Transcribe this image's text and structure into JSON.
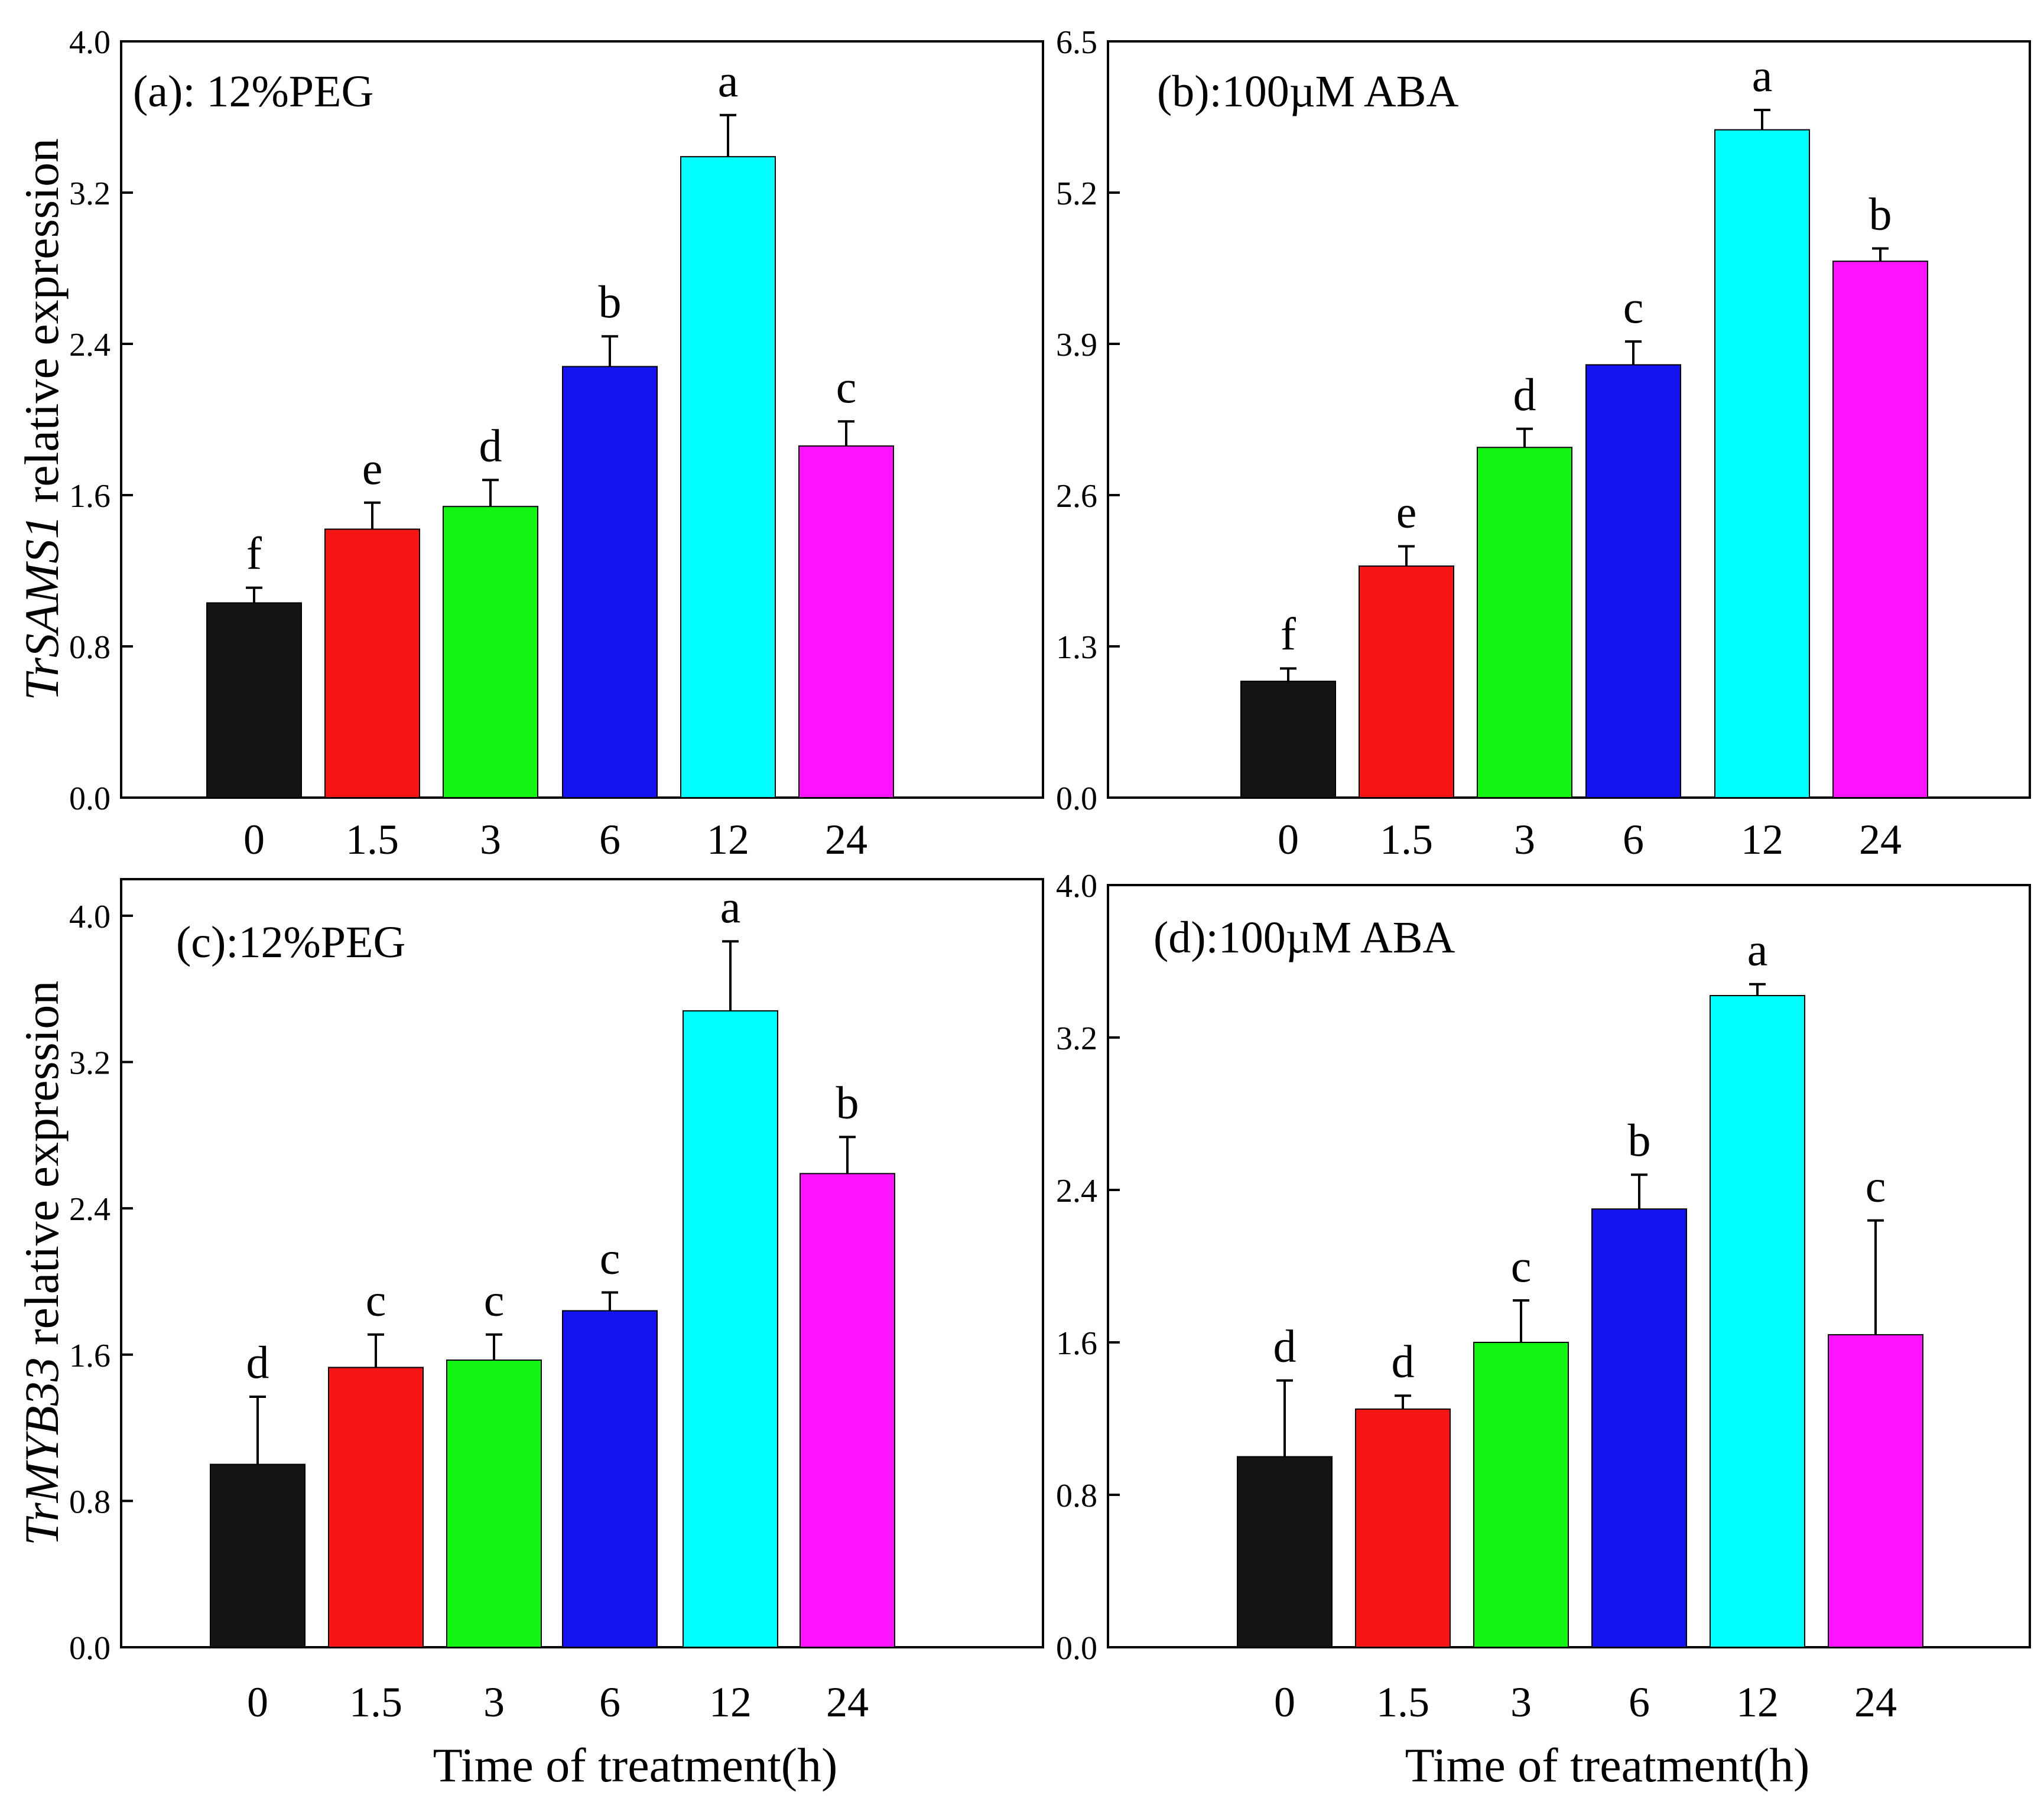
{
  "figure": {
    "xlabel": "Time of treatment(h)",
    "ylabel_top": {
      "gene": "TrSAMS1",
      "suffix": " relative expression"
    },
    "ylabel_bottom": {
      "gene": "TrMYB33",
      "suffix": " relative expression"
    },
    "bar_colors": [
      "#141414",
      "#f71414",
      "#14f514",
      "#1414f0",
      "#00ffff",
      "#ff14ff"
    ]
  },
  "chart_data": [
    {
      "type": "bar",
      "id": "a",
      "title": "(a): 12%PEG",
      "categories": [
        "0",
        "1.5",
        "3",
        "6",
        "12",
        "24"
      ],
      "values": [
        1.03,
        1.42,
        1.54,
        2.28,
        3.39,
        1.86
      ],
      "errors": [
        0.08,
        0.14,
        0.14,
        0.16,
        0.22,
        0.13
      ],
      "letters": [
        "f",
        "e",
        "d",
        "b",
        "a",
        "c"
      ],
      "ylim": [
        0,
        4.0
      ],
      "yticks": [
        "0.0",
        "0.8",
        "1.6",
        "2.4",
        "3.2",
        "4.0"
      ]
    },
    {
      "type": "bar",
      "id": "b",
      "title": "(b):100µM ABA",
      "categories": [
        "0",
        "1.5",
        "3",
        "6",
        "12",
        "24"
      ],
      "values": [
        1.0,
        1.99,
        3.01,
        3.72,
        5.74,
        4.61
      ],
      "errors": [
        0.11,
        0.17,
        0.16,
        0.2,
        0.17,
        0.11
      ],
      "letters": [
        "f",
        "e",
        "d",
        "c",
        "a",
        "b"
      ],
      "ylim": [
        0,
        6.5
      ],
      "yticks": [
        "0.0",
        "1.3",
        "2.6",
        "3.9",
        "5.2",
        "6.5"
      ]
    },
    {
      "type": "bar",
      "id": "c",
      "title": "(c):12%PEG",
      "categories": [
        "0",
        "1.5",
        "3",
        "6",
        "12",
        "24"
      ],
      "values": [
        1.0,
        1.53,
        1.57,
        1.84,
        3.48,
        2.59
      ],
      "errors": [
        0.37,
        0.18,
        0.14,
        0.1,
        0.38,
        0.2
      ],
      "letters": [
        "d",
        "c",
        "c",
        "c",
        "a",
        "b"
      ],
      "ylim": [
        0,
        4.2
      ],
      "yticks": [
        "0.0",
        "0.8",
        "1.6",
        "2.4",
        "3.2",
        "4.0"
      ]
    },
    {
      "type": "bar",
      "id": "d",
      "title": "(d):100µM ABA",
      "categories": [
        "0",
        "1.5",
        "3",
        "6",
        "12",
        "24"
      ],
      "values": [
        1.0,
        1.25,
        1.6,
        2.3,
        3.42,
        1.64
      ],
      "errors": [
        0.4,
        0.07,
        0.22,
        0.18,
        0.06,
        0.6
      ],
      "letters": [
        "d",
        "d",
        "c",
        "b",
        "a",
        "c"
      ],
      "ylim": [
        0,
        4.0
      ],
      "yticks": [
        "0.0",
        "0.8",
        "1.6",
        "2.4",
        "3.2",
        "4.0"
      ]
    }
  ]
}
